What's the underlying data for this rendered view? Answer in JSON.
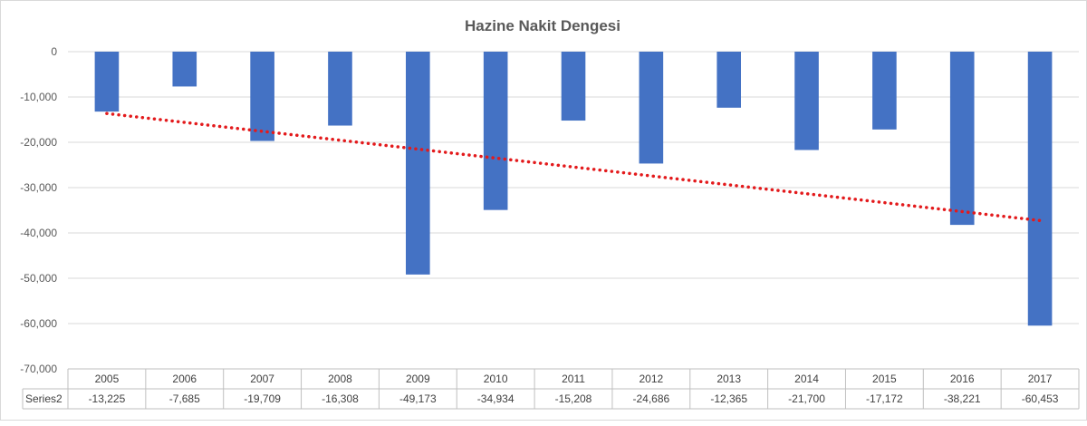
{
  "chart_data": {
    "type": "bar",
    "title": "Hazine Nakit Dengesi",
    "categories": [
      "2005",
      "2006",
      "2007",
      "2008",
      "2009",
      "2010",
      "2011",
      "2012",
      "2013",
      "2014",
      "2015",
      "2016",
      "2017"
    ],
    "series": [
      {
        "name": "Series2",
        "values": [
          -13225,
          -7685,
          -19709,
          -16308,
          -49173,
          -34934,
          -15208,
          -24686,
          -12365,
          -21700,
          -17172,
          -38221,
          -60453
        ],
        "value_labels": [
          "-13,225",
          "-7,685",
          "-19,709",
          "-16,308",
          "-49,173",
          "-34,934",
          "-15,208",
          "-24,686",
          "-12,365",
          "-21,700",
          "-17,172",
          "-38,221",
          "-60,453"
        ],
        "color": "#4472c4"
      }
    ],
    "ylim": [
      -70000,
      0
    ],
    "yticks": [
      0,
      -10000,
      -20000,
      -30000,
      -40000,
      -50000,
      -60000,
      -70000
    ],
    "ytick_labels": [
      "0",
      "-10,000",
      "-20,000",
      "-30,000",
      "-40,000",
      "-50,000",
      "-60,000",
      "-70,000"
    ],
    "trendline": {
      "type": "linear",
      "style": "dotted",
      "color": "#e31a1c"
    },
    "grid": true,
    "data_table": true,
    "xlabel": "",
    "ylabel": ""
  }
}
